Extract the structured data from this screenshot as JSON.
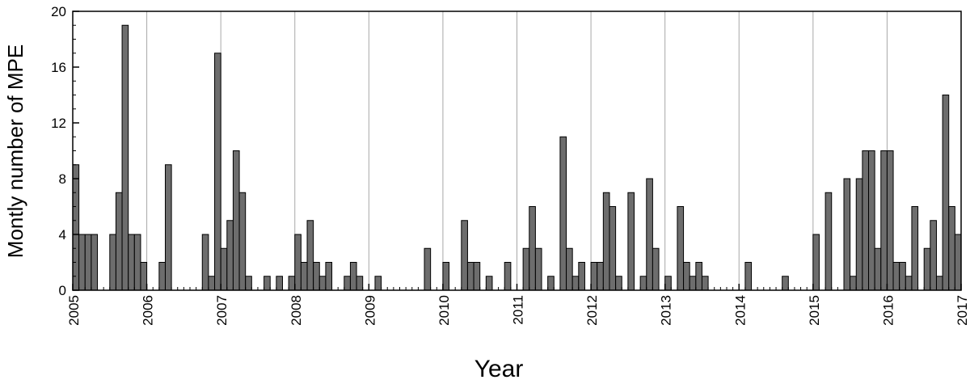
{
  "chart_data": {
    "type": "histogram",
    "xlabel": "Year",
    "ylabel": "Montly number of MPE",
    "bins": [
      2005,
      2005.0833,
      2005.1667,
      2005.25,
      2005.3333,
      2005.4167,
      2005.5,
      2005.5833,
      2005.6667,
      2005.75,
      2005.8333,
      2005.9167,
      2006,
      2006.0833,
      2006.1667,
      2006.25,
      2006.3333,
      2006.4167,
      2006.5,
      2006.5833,
      2006.6667,
      2006.75,
      2006.8333,
      2006.9167,
      2007,
      2007.0833,
      2007.1667,
      2007.25,
      2007.3333,
      2007.4167,
      2007.5,
      2007.5833,
      2007.6667,
      2007.75,
      2007.8333,
      2007.9167,
      2008,
      2008.0833,
      2008.1667,
      2008.25,
      2008.3333,
      2008.4167,
      2008.5,
      2008.5833,
      2008.6667,
      2008.75,
      2008.8333,
      2008.9167,
      2009,
      2009.0833,
      2009.1667,
      2009.25,
      2009.3333,
      2009.4167,
      2009.5,
      2009.5833,
      2009.6667,
      2009.75,
      2009.8333,
      2009.9167,
      2010,
      2010.0833,
      2010.1667,
      2010.25,
      2010.3333,
      2010.4167,
      2010.5,
      2010.5833,
      2010.6667,
      2010.75,
      2010.8333,
      2010.9167,
      2011,
      2011.0833,
      2011.1667,
      2011.25,
      2011.3333,
      2011.4167,
      2011.5,
      2011.5833,
      2011.6667,
      2011.75,
      2011.8333,
      2011.9167,
      2012,
      2012.0833,
      2012.1667,
      2012.25,
      2012.3333,
      2012.4167,
      2012.5,
      2012.5833,
      2012.6667,
      2012.75,
      2012.8333,
      2012.9167,
      2013,
      2013.0833,
      2013.1667,
      2013.25,
      2013.3333,
      2013.4167,
      2013.5,
      2013.5833,
      2013.6667,
      2013.75,
      2013.8333,
      2013.9167,
      2014,
      2014.0833,
      2014.1667,
      2014.25,
      2014.3333,
      2014.4167,
      2014.5,
      2014.5833,
      2014.6667,
      2014.75,
      2014.8333,
      2014.9167,
      2015,
      2015.0833,
      2015.1667,
      2015.25,
      2015.3333,
      2015.4167,
      2015.5,
      2015.5833,
      2015.6667,
      2015.75,
      2015.8333,
      2015.9167,
      2016,
      2016.0833,
      2016.1667,
      2016.25,
      2016.3333,
      2016.4167,
      2016.5,
      2016.5833,
      2016.6667,
      2016.75,
      2016.8333,
      2016.9167,
      2017
    ],
    "values": [
      9,
      4,
      4,
      4,
      0,
      0,
      4,
      7,
      19,
      4,
      4,
      2,
      0,
      0,
      2,
      9,
      0,
      0,
      0,
      0,
      0,
      4,
      1,
      17,
      3,
      5,
      10,
      7,
      1,
      0,
      0,
      1,
      0,
      1,
      0,
      1,
      4,
      2,
      5,
      2,
      1,
      2,
      0,
      0,
      1,
      2,
      1,
      0,
      0,
      1,
      0,
      0,
      0,
      0,
      0,
      0,
      0,
      3,
      0,
      0,
      2,
      0,
      0,
      5,
      2,
      2,
      0,
      1,
      0,
      0,
      2,
      0,
      0,
      3,
      6,
      3,
      0,
      1,
      0,
      11,
      3,
      1,
      2,
      0,
      2,
      2,
      7,
      6,
      1,
      0,
      7,
      0,
      1,
      8,
      3,
      0,
      1,
      0,
      6,
      2,
      1,
      2,
      1,
      0,
      0,
      0,
      0,
      0,
      0,
      2,
      0,
      0,
      0,
      0,
      0,
      1,
      0,
      0,
      0,
      0,
      4,
      0,
      7,
      0,
      0,
      8,
      1,
      8,
      10,
      10,
      3,
      10,
      10,
      2,
      2,
      1,
      6,
      0,
      3,
      5,
      1,
      14,
      6,
      4
    ],
    "color": "#6d6d6d",
    "xlim": [
      2005,
      2017
    ],
    "xticks": [
      2005,
      2006,
      2007,
      2008,
      2009,
      2010,
      2011,
      2012,
      2013,
      2014,
      2015,
      2016,
      2017
    ],
    "ylim": [
      0,
      20
    ],
    "yticks": [
      0,
      4,
      8,
      12,
      16,
      20
    ],
    "grid": true
  }
}
